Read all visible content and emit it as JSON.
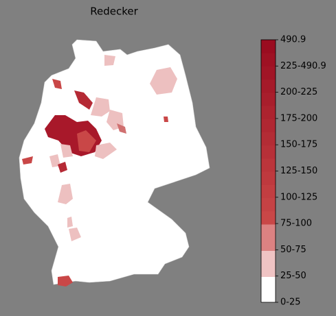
{
  "title": "Redecker",
  "colorbar": {
    "labels": [
      "0-25",
      "25-50",
      "50-75",
      "75-100",
      "100-125",
      "125-150",
      "150-175",
      "175-200",
      "200-225",
      "225-490.9",
      "490.9"
    ]
  }
}
